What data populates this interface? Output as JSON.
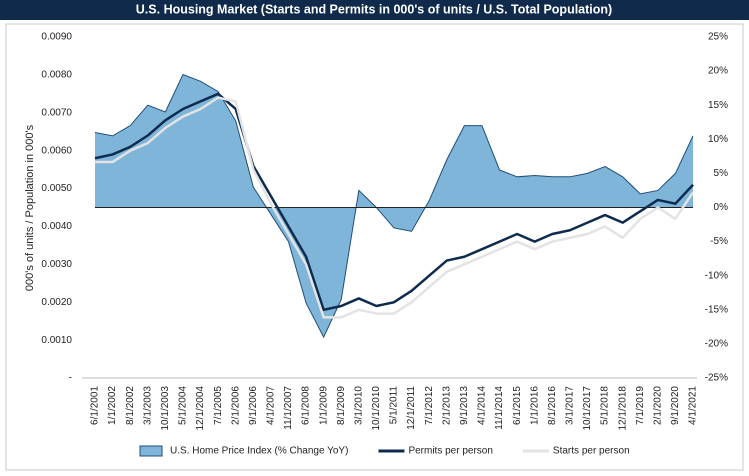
{
  "chart_data": {
    "type": "combo",
    "title": "U.S. Housing Market (Starts and Permits in 000's of units / U.S. Total Population)",
    "y_label": "000's of units / Population in 000's",
    "categories": [
      "6/1/2001",
      "1/1/2002",
      "8/1/2002",
      "3/1/2003",
      "10/1/2003",
      "5/1/2004",
      "12/1/2004",
      "7/1/2005",
      "2/1/2006",
      "9/1/2006",
      "4/1/2007",
      "11/1/2007",
      "6/1/2008",
      "1/1/2009",
      "8/1/2009",
      "3/1/2010",
      "10/1/2010",
      "5/1/2011",
      "12/1/2011",
      "7/1/2012",
      "2/1/2013",
      "9/1/2013",
      "4/1/2014",
      "11/1/2014",
      "6/1/2015",
      "1/1/2016",
      "8/1/2016",
      "3/1/2017",
      "10/1/2017",
      "5/1/2018",
      "12/1/2018",
      "7/1/2019",
      "2/1/2020",
      "9/1/2020",
      "4/1/2021"
    ],
    "series": [
      {
        "name": "U.S. Home Price Index (% Change YoY)",
        "type": "area",
        "axis": "y2",
        "color": "#7fb5d8",
        "edge": "#1f4e79",
        "values": [
          11,
          10.5,
          12,
          15,
          14,
          19.5,
          18.5,
          17,
          12.7,
          3,
          -1,
          -5,
          -14,
          -19,
          -13.5,
          2.5,
          0,
          -3,
          -3.5,
          1,
          7,
          12,
          12,
          5.5,
          4.5,
          4.7,
          4.5,
          4.5,
          5,
          6,
          4.5,
          2,
          2.5,
          5,
          10.5
        ]
      },
      {
        "name": "Permits per person",
        "type": "line",
        "color": "#0d2b4e",
        "width": 2.5,
        "values": [
          0.0058,
          0.0059,
          0.0061,
          0.0064,
          0.0068,
          0.0071,
          0.0073,
          0.0075,
          0.0071,
          0.0056,
          0.0048,
          0.004,
          0.0032,
          0.0018,
          0.0019,
          0.0021,
          0.0019,
          0.002,
          0.0023,
          0.0027,
          0.0031,
          0.0032,
          0.0034,
          0.0036,
          0.0038,
          0.0036,
          0.0038,
          0.0039,
          0.0041,
          0.0043,
          0.0041,
          0.0044,
          0.0047,
          0.0046,
          0.0051
        ]
      },
      {
        "name": "Starts per person",
        "type": "line",
        "color": "#e3e3e3",
        "width": 2.5,
        "values": [
          0.0057,
          0.0057,
          0.006,
          0.0062,
          0.0066,
          0.0069,
          0.0071,
          0.0074,
          0.0073,
          0.0055,
          0.0046,
          0.0038,
          0.003,
          0.0016,
          0.0016,
          0.0018,
          0.0017,
          0.0017,
          0.002,
          0.0024,
          0.0028,
          0.003,
          0.0032,
          0.0034,
          0.0036,
          0.0034,
          0.0036,
          0.0037,
          0.0038,
          0.004,
          0.0037,
          0.0042,
          0.0045,
          0.0042,
          0.0049
        ]
      }
    ],
    "ylim": [
      0,
      0.009
    ],
    "yticks": [
      {
        "value": 0,
        "label": "-"
      },
      {
        "value": 0.001,
        "label": "0.0010"
      },
      {
        "value": 0.002,
        "label": "0.0020"
      },
      {
        "value": 0.003,
        "label": "0.0030"
      },
      {
        "value": 0.004,
        "label": "0.0040"
      },
      {
        "value": 0.005,
        "label": "0.0050"
      },
      {
        "value": 0.006,
        "label": "0.0060"
      },
      {
        "value": 0.007,
        "label": "0.0070"
      },
      {
        "value": 0.008,
        "label": "0.0080"
      },
      {
        "value": 0.009,
        "label": "0.0090"
      }
    ],
    "y2lim": [
      -25,
      25
    ],
    "y2ticks": [
      {
        "value": -25,
        "label": "-25%"
      },
      {
        "value": -20,
        "label": "-20%"
      },
      {
        "value": -15,
        "label": "-15%"
      },
      {
        "value": -10,
        "label": "-10%"
      },
      {
        "value": -5,
        "label": "-5%"
      },
      {
        "value": 0,
        "label": "0%"
      },
      {
        "value": 5,
        "label": "5%"
      },
      {
        "value": 10,
        "label": "10%"
      },
      {
        "value": 15,
        "label": "15%"
      },
      {
        "value": 20,
        "label": "20%"
      },
      {
        "value": 25,
        "label": "25%"
      }
    ],
    "grid": false,
    "legend": "bottom"
  }
}
